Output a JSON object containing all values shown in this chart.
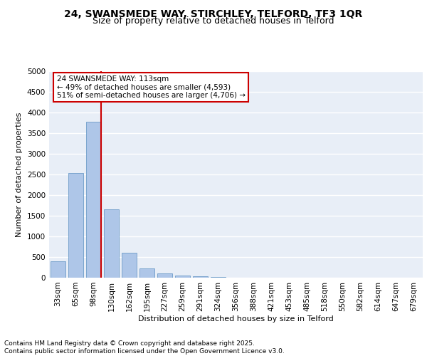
{
  "title1": "24, SWANSMEDE WAY, STIRCHLEY, TELFORD, TF3 1QR",
  "title2": "Size of property relative to detached houses in Telford",
  "xlabel": "Distribution of detached houses by size in Telford",
  "ylabel": "Number of detached properties",
  "categories": [
    "33sqm",
    "65sqm",
    "98sqm",
    "130sqm",
    "162sqm",
    "195sqm",
    "227sqm",
    "259sqm",
    "291sqm",
    "324sqm",
    "356sqm",
    "388sqm",
    "421sqm",
    "453sqm",
    "485sqm",
    "518sqm",
    "550sqm",
    "582sqm",
    "614sqm",
    "647sqm",
    "679sqm"
  ],
  "values": [
    390,
    2540,
    3780,
    1650,
    610,
    230,
    105,
    50,
    40,
    15,
    5,
    5,
    0,
    0,
    0,
    0,
    0,
    0,
    0,
    0,
    0
  ],
  "bar_color": "#aec6e8",
  "bar_edge_color": "#5a8fc0",
  "bg_color": "#e8eef7",
  "grid_color": "#ffffff",
  "vline_color": "#cc0000",
  "annotation_text": "24 SWANSMEDE WAY: 113sqm\n← 49% of detached houses are smaller (4,593)\n51% of semi-detached houses are larger (4,706) →",
  "annotation_box_color": "#cc0000",
  "ylim": [
    0,
    5000
  ],
  "yticks": [
    0,
    500,
    1000,
    1500,
    2000,
    2500,
    3000,
    3500,
    4000,
    4500,
    5000
  ],
  "footer1": "Contains HM Land Registry data © Crown copyright and database right 2025.",
  "footer2": "Contains public sector information licensed under the Open Government Licence v3.0.",
  "title_fontsize": 10,
  "subtitle_fontsize": 9,
  "axis_fontsize": 8,
  "tick_fontsize": 7.5,
  "footer_fontsize": 6.5
}
